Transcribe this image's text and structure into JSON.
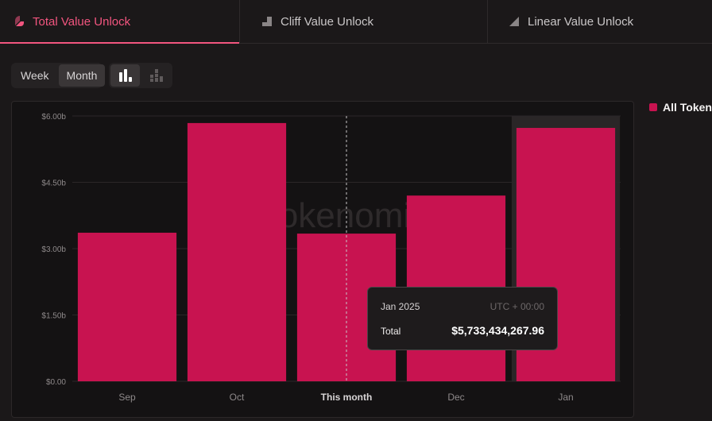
{
  "tabs": [
    {
      "label": "Total Value Unlock",
      "icon": "pie-slice-icon",
      "active": true
    },
    {
      "label": "Cliff Value Unlock",
      "icon": "cliff-step-icon",
      "active": false
    },
    {
      "label": "Linear Value Unlock",
      "icon": "linear-ramp-icon",
      "active": false
    }
  ],
  "range_toggle": {
    "week": "Week",
    "month": "Month",
    "selected": "Month"
  },
  "chart_type_toggle": {
    "options": [
      "bar-chart-icon",
      "stacked-bar-chart-icon"
    ],
    "selected": "bar-chart-icon"
  },
  "legend": {
    "label": "All Tokens",
    "color": "#c81350"
  },
  "watermark": "tokenomist",
  "tooltip": {
    "date": "Jan 2025",
    "timezone": "UTC + 00:00",
    "label": "Total",
    "value": "$5,733,434,267.96"
  },
  "colors": {
    "accent": "#f2557f",
    "bar": "#c81350",
    "background": "#1b1819",
    "plot_background": "#141213"
  },
  "chart_data": {
    "type": "bar",
    "categories": [
      "Sep",
      "Oct",
      "This month",
      "Dec",
      "Jan"
    ],
    "values": [
      3.36,
      5.84,
      3.34,
      4.2,
      5.73
    ],
    "value_unit": "billion USD",
    "yticks": [
      "$0.00",
      "$1.50b",
      "$3.00b",
      "$4.50b",
      "$6.00b"
    ],
    "ylim": [
      0,
      6
    ],
    "grid": true,
    "current_category": "This month",
    "highlighted_category": "Jan",
    "title": "",
    "xlabel": "",
    "ylabel": ""
  }
}
